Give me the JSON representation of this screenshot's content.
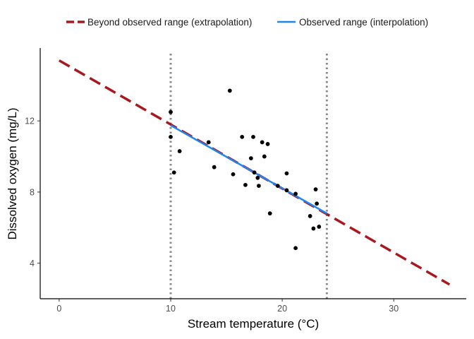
{
  "chart_data": {
    "type": "scatter",
    "title": "",
    "xlabel": "Stream temperature (°C)",
    "ylabel": "Dissolved oxygen (mg/L)",
    "xlim": [
      -1.7,
      36.5
    ],
    "ylim": [
      2.0,
      16.1
    ],
    "x_ticks": [
      0,
      10,
      20,
      30
    ],
    "y_ticks": [
      4,
      8,
      12
    ],
    "x_tick_labels": [
      "0",
      "10",
      "20",
      "30"
    ],
    "y_tick_labels": [
      "4",
      "8",
      "12"
    ],
    "grid": false,
    "legend_position": "top",
    "points": [
      {
        "x": 10.0,
        "y": 12.5
      },
      {
        "x": 10.0,
        "y": 11.1
      },
      {
        "x": 10.3,
        "y": 9.1
      },
      {
        "x": 10.8,
        "y": 10.3
      },
      {
        "x": 13.4,
        "y": 10.8
      },
      {
        "x": 13.9,
        "y": 9.4
      },
      {
        "x": 15.3,
        "y": 13.7
      },
      {
        "x": 15.6,
        "y": 9.0
      },
      {
        "x": 16.4,
        "y": 11.1
      },
      {
        "x": 16.7,
        "y": 8.4
      },
      {
        "x": 17.2,
        "y": 9.9
      },
      {
        "x": 17.4,
        "y": 11.1
      },
      {
        "x": 17.5,
        "y": 9.1
      },
      {
        "x": 17.8,
        "y": 8.8
      },
      {
        "x": 17.9,
        "y": 8.35
      },
      {
        "x": 18.2,
        "y": 10.8
      },
      {
        "x": 18.4,
        "y": 10.0
      },
      {
        "x": 18.7,
        "y": 10.7
      },
      {
        "x": 18.9,
        "y": 6.8
      },
      {
        "x": 19.6,
        "y": 8.35
      },
      {
        "x": 20.4,
        "y": 9.05
      },
      {
        "x": 20.4,
        "y": 8.1
      },
      {
        "x": 21.2,
        "y": 7.9
      },
      {
        "x": 21.2,
        "y": 4.85
      },
      {
        "x": 22.5,
        "y": 6.65
      },
      {
        "x": 22.8,
        "y": 5.95
      },
      {
        "x": 23.0,
        "y": 8.15
      },
      {
        "x": 23.1,
        "y": 7.35
      },
      {
        "x": 23.3,
        "y": 6.05
      }
    ],
    "series": [
      {
        "name": "Beyond observed range (extrapolation)",
        "color": "#a8181e",
        "style": "dashed",
        "x": [
          0,
          35
        ],
        "y": [
          15.4,
          2.8
        ]
      },
      {
        "name": "Observed range (interpolation)",
        "color": "#1f86f0",
        "style": "solid",
        "x": [
          10,
          24
        ],
        "y": [
          11.75,
          6.8
        ]
      }
    ],
    "reference_lines": [
      {
        "axis": "x",
        "value": 10,
        "style": "dotted",
        "color": "#8a8a8a"
      },
      {
        "axis": "x",
        "value": 24,
        "style": "dotted",
        "color": "#8a8a8a"
      }
    ]
  }
}
